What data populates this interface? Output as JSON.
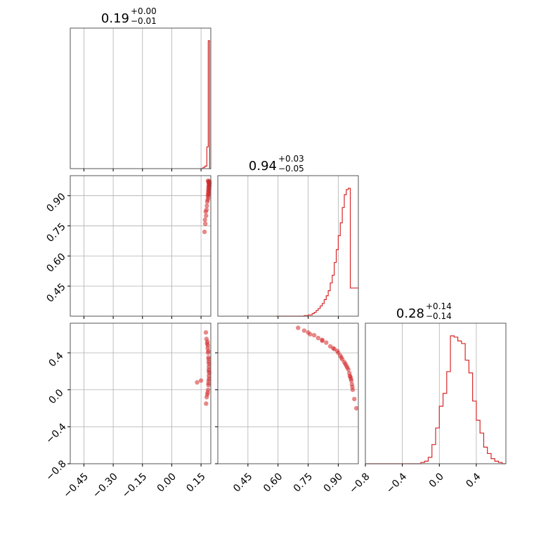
{
  "chart_data": {
    "type": "corner",
    "color": "#d62728",
    "grid": true,
    "parameters": [
      {
        "range": [
          -0.52,
          0.2
        ],
        "ticks": [
          -0.45,
          -0.3,
          -0.15,
          0.0,
          0.15
        ],
        "tick_labels": [
          "−0.45",
          "−0.30",
          "−0.15",
          "0.00",
          "0.15"
        ],
        "title": {
          "median": "0.19",
          "plus": "+0.00",
          "minus": "−0.01"
        }
      },
      {
        "range": [
          0.3,
          1.0
        ],
        "ticks": [
          0.45,
          0.6,
          0.75,
          0.9
        ],
        "tick_labels": [
          "0.45",
          "0.60",
          "0.75",
          "0.90"
        ],
        "title": {
          "median": "0.94",
          "plus": "+0.03",
          "minus": "−0.05"
        }
      },
      {
        "range": [
          -0.8,
          0.72
        ],
        "ticks": [
          -0.8,
          -0.4,
          0.0,
          0.4
        ],
        "tick_labels": [
          "−0.8",
          "−0.4",
          "0.0",
          "0.4"
        ],
        "title": {
          "median": "0.28",
          "plus": "+0.14",
          "minus": "−0.14"
        }
      }
    ],
    "histograms": [
      {
        "param": 0,
        "bin_edges": [
          0.15,
          0.16,
          0.17,
          0.18,
          0.187,
          0.194,
          0.201
        ],
        "counts": [
          0.0,
          0.01,
          0.02,
          0.17,
          1.0,
          0.0
        ]
      },
      {
        "param": 1,
        "bin_edges": [
          0.59,
          0.61,
          0.63,
          0.65,
          0.67,
          0.69,
          0.71,
          0.73,
          0.75,
          0.77,
          0.78,
          0.79,
          0.8,
          0.81,
          0.82,
          0.83,
          0.84,
          0.85,
          0.86,
          0.87,
          0.88,
          0.89,
          0.9,
          0.91,
          0.92,
          0.93,
          0.94,
          0.95,
          0.96,
          0.97,
          0.98,
          0.99,
          1.0
        ],
        "counts": [
          0.0,
          0.0,
          0.0,
          0.0,
          0.0,
          0.0,
          0.0,
          0.004,
          0.01,
          0.02,
          0.03,
          0.045,
          0.06,
          0.08,
          0.1,
          0.13,
          0.16,
          0.2,
          0.26,
          0.32,
          0.42,
          0.52,
          0.63,
          0.73,
          0.85,
          0.95,
          0.99,
          1.0,
          0.22,
          0.22,
          0.22,
          0.22
        ]
      },
      {
        "param": 2,
        "bin_edges": [
          -0.8,
          -0.2,
          -0.16,
          -0.12,
          -0.08,
          -0.04,
          0.0,
          0.04,
          0.08,
          0.12,
          0.16,
          0.2,
          0.24,
          0.28,
          0.32,
          0.36,
          0.4,
          0.44,
          0.48,
          0.52,
          0.56,
          0.6,
          0.64,
          0.68,
          0.72
        ],
        "counts": [
          0.0,
          0.01,
          0.02,
          0.05,
          0.15,
          0.28,
          0.45,
          0.55,
          0.72,
          1.0,
          0.99,
          0.96,
          0.94,
          0.81,
          0.71,
          0.49,
          0.34,
          0.24,
          0.13,
          0.08,
          0.04,
          0.02,
          0.01,
          0.0
        ]
      }
    ],
    "scatter": [
      {
        "x_param": 0,
        "y_param": 1,
        "points": [
          [
            0.186,
            0.975
          ],
          [
            0.188,
            0.97
          ],
          [
            0.19,
            0.968
          ],
          [
            0.192,
            0.965
          ],
          [
            0.189,
            0.96
          ],
          [
            0.191,
            0.955
          ],
          [
            0.193,
            0.95
          ],
          [
            0.188,
            0.945
          ],
          [
            0.19,
            0.94
          ],
          [
            0.192,
            0.935
          ],
          [
            0.187,
            0.93
          ],
          [
            0.189,
            0.925
          ],
          [
            0.191,
            0.92
          ],
          [
            0.186,
            0.915
          ],
          [
            0.19,
            0.91
          ],
          [
            0.188,
            0.905
          ],
          [
            0.185,
            0.9
          ],
          [
            0.187,
            0.89
          ],
          [
            0.184,
            0.88
          ],
          [
            0.182,
            0.87
          ],
          [
            0.18,
            0.85
          ],
          [
            0.178,
            0.83
          ],
          [
            0.176,
            0.8
          ],
          [
            0.172,
            0.76
          ],
          [
            0.168,
            0.72
          ],
          [
            0.17,
            0.78
          ],
          [
            0.174,
            0.82
          ],
          [
            0.193,
            0.972
          ],
          [
            0.194,
            0.962
          ],
          [
            0.192,
            0.948
          ]
        ]
      },
      {
        "x_param": 0,
        "y_param": 2,
        "points": [
          [
            0.175,
            0.62
          ],
          [
            0.178,
            0.55
          ],
          [
            0.181,
            0.5
          ],
          [
            0.184,
            0.45
          ],
          [
            0.186,
            0.4
          ],
          [
            0.188,
            0.35
          ],
          [
            0.189,
            0.3
          ],
          [
            0.19,
            0.25
          ],
          [
            0.19,
            0.2
          ],
          [
            0.19,
            0.15
          ],
          [
            0.189,
            0.1
          ],
          [
            0.188,
            0.05
          ],
          [
            0.186,
            0.0
          ],
          [
            0.184,
            -0.03
          ],
          [
            0.182,
            -0.05
          ],
          [
            0.179,
            -0.08
          ],
          [
            0.176,
            -0.15
          ],
          [
            0.187,
            0.42
          ],
          [
            0.189,
            0.33
          ],
          [
            0.19,
            0.22
          ],
          [
            0.191,
            0.12
          ],
          [
            0.188,
            0.07
          ],
          [
            0.185,
            0.48
          ],
          [
            0.183,
            0.52
          ],
          [
            0.15,
            0.1
          ],
          [
            0.13,
            0.08
          ],
          [
            0.192,
            0.18
          ],
          [
            0.191,
            0.28
          ]
        ]
      },
      {
        "x_param": 1,
        "y_param": 2,
        "points": [
          [
            0.7,
            0.67
          ],
          [
            0.73,
            0.64
          ],
          [
            0.75,
            0.62
          ],
          [
            0.78,
            0.59
          ],
          [
            0.8,
            0.56
          ],
          [
            0.82,
            0.54
          ],
          [
            0.84,
            0.51
          ],
          [
            0.86,
            0.47
          ],
          [
            0.88,
            0.44
          ],
          [
            0.9,
            0.4
          ],
          [
            0.91,
            0.37
          ],
          [
            0.92,
            0.33
          ],
          [
            0.93,
            0.3
          ],
          [
            0.94,
            0.26
          ],
          [
            0.95,
            0.22
          ],
          [
            0.955,
            0.18
          ],
          [
            0.96,
            0.14
          ],
          [
            0.965,
            0.1
          ],
          [
            0.968,
            0.06
          ],
          [
            0.97,
            0.03
          ],
          [
            0.972,
            0.0
          ],
          [
            0.875,
            0.45
          ],
          [
            0.895,
            0.42
          ],
          [
            0.915,
            0.35
          ],
          [
            0.935,
            0.28
          ],
          [
            0.945,
            0.24
          ],
          [
            0.958,
            0.15
          ],
          [
            0.963,
            0.12
          ],
          [
            0.99,
            -0.2
          ],
          [
            0.98,
            -0.1
          ],
          [
            0.76,
            0.6
          ],
          [
            0.82,
            0.53
          ]
        ]
      }
    ]
  }
}
